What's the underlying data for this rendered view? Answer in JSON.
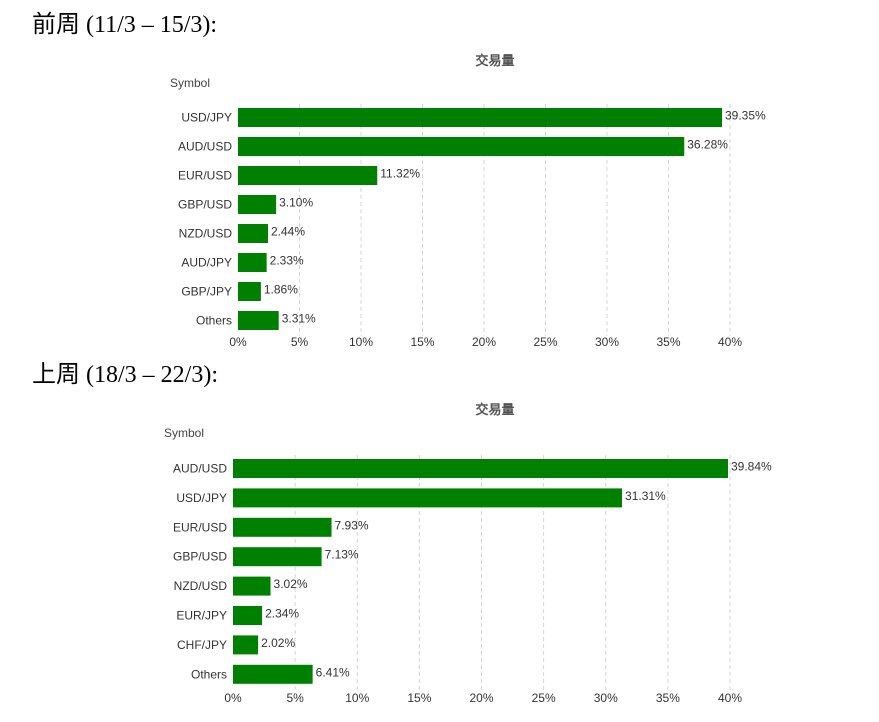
{
  "sections": [
    {
      "heading": "前周 (11/3 – 15/3):"
    },
    {
      "heading": "上周 (18/3 – 22/3):"
    }
  ],
  "colors": {
    "bar": "#008000",
    "grid": "#d4d4d4"
  },
  "chart_data": [
    {
      "type": "bar",
      "orientation": "horizontal",
      "title": "交易量",
      "ylabel": "Symbol",
      "categories": [
        "USD/JPY",
        "AUD/USD",
        "EUR/USD",
        "GBP/USD",
        "NZD/USD",
        "AUD/JPY",
        "GBP/JPY",
        "Others"
      ],
      "values": [
        39.35,
        36.28,
        11.32,
        3.1,
        2.44,
        2.33,
        1.86,
        3.31
      ],
      "value_labels": [
        "39.35%",
        "36.28%",
        "11.32%",
        "3.10%",
        "2.44%",
        "2.33%",
        "1.86%",
        "3.31%"
      ],
      "xlim": [
        0,
        40
      ],
      "x_ticks": [
        0,
        5,
        10,
        15,
        20,
        25,
        30,
        35,
        40
      ],
      "x_tick_labels": [
        "0%",
        "5%",
        "10%",
        "15%",
        "20%",
        "25%",
        "30%",
        "35%",
        "40%"
      ],
      "grid": true,
      "legend": "none"
    },
    {
      "type": "bar",
      "orientation": "horizontal",
      "title": "交易量",
      "ylabel": "Symbol",
      "categories": [
        "AUD/USD",
        "USD/JPY",
        "EUR/USD",
        "GBP/USD",
        "NZD/USD",
        "EUR/JPY",
        "CHF/JPY",
        "Others"
      ],
      "values": [
        39.84,
        31.31,
        7.93,
        7.13,
        3.02,
        2.34,
        2.02,
        6.41
      ],
      "value_labels": [
        "39.84%",
        "31.31%",
        "7.93%",
        "7.13%",
        "3.02%",
        "2.34%",
        "2.02%",
        "6.41%"
      ],
      "xlim": [
        0,
        40
      ],
      "x_ticks": [
        0,
        5,
        10,
        15,
        20,
        25,
        30,
        35,
        40
      ],
      "x_tick_labels": [
        "0%",
        "5%",
        "10%",
        "15%",
        "20%",
        "25%",
        "30%",
        "35%",
        "40%"
      ],
      "grid": true,
      "legend": "none"
    }
  ]
}
